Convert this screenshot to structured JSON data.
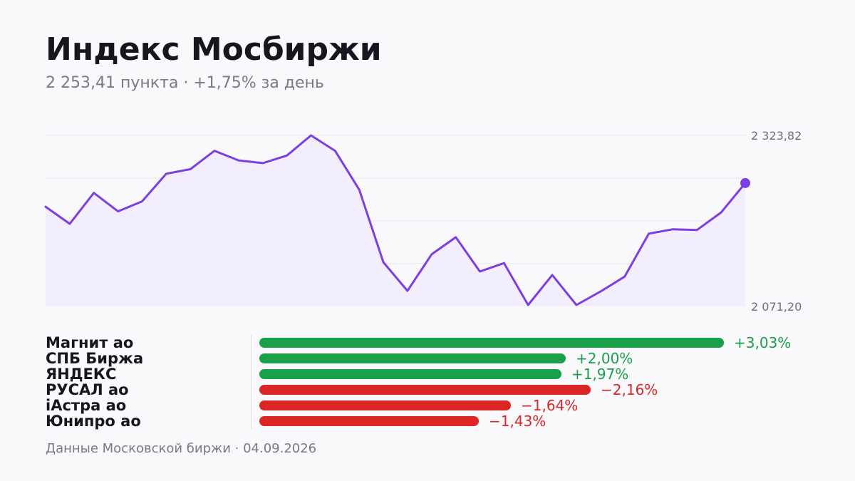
{
  "title": "Индекс Мосбиржи",
  "subtitle": "2 253,41 пункта · +1,75% за день",
  "footer": "Данные Московской биржи · 04.09.2026",
  "colors": {
    "line": "#7b3fe4",
    "area": "#f3eefe",
    "positive": "#1a9f4b",
    "negative": "#dc2626",
    "grid": "#e6e6ec"
  },
  "chart_data": [
    {
      "type": "line",
      "title": "",
      "xlabel": "",
      "ylabel": "",
      "ylim": [
        2071.2,
        2323.82
      ],
      "yticks": [
        "2 323,82",
        "2 071,20"
      ],
      "grid": true,
      "last_point_marker": true,
      "values": [
        2218.5,
        2193.2,
        2238.9,
        2211.6,
        2226.3,
        2267.2,
        2273.9,
        2301.1,
        2286.9,
        2282.9,
        2294.0,
        2323.8,
        2301.1,
        2243.6,
        2136.4,
        2094.2,
        2148.1,
        2173.4,
        2122.8,
        2135.2,
        2073.3,
        2117.6,
        2073.3,
        2093.2,
        2115.2,
        2178.7,
        2185.2,
        2184.1,
        2210.0,
        2253.4
      ]
    },
    {
      "type": "bar",
      "orientation": "horizontal",
      "categories": [
        "Магнит ао",
        "СПБ Биржа",
        "ЯНДЕКС",
        "РУСАЛ ао",
        "iАстра ао",
        "Юнипро ао"
      ],
      "values": [
        3.03,
        2.0,
        1.97,
        -2.16,
        -1.64,
        -1.43
      ],
      "labels": [
        "+3,03%",
        "+2,00%",
        "+1,97%",
        "−2,16%",
        "−1,64%",
        "−1,43%"
      ]
    }
  ]
}
